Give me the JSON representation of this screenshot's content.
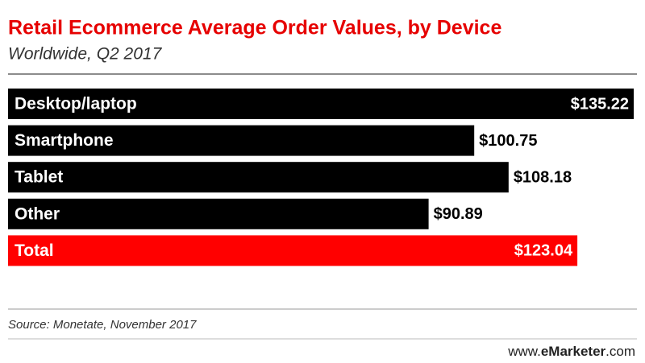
{
  "chart_data": {
    "type": "bar",
    "orientation": "horizontal",
    "title": "Retail Ecommerce Average Order Values, by Device",
    "subtitle": "Worldwide, Q2 2017",
    "categories": [
      "Desktop/laptop",
      "Smartphone",
      "Tablet",
      "Other",
      "Total"
    ],
    "values": [
      135.22,
      100.75,
      108.18,
      90.89,
      123.04
    ],
    "value_labels": [
      "$135.22",
      "$100.75",
      "$108.18",
      "$90.89",
      "$123.04"
    ],
    "colors": [
      "#000000",
      "#000000",
      "#000000",
      "#000000",
      "#ff0000"
    ],
    "source": "Source: Monetate, November 2017",
    "brand": [
      "www.",
      "eMarketer",
      ".com"
    ]
  }
}
